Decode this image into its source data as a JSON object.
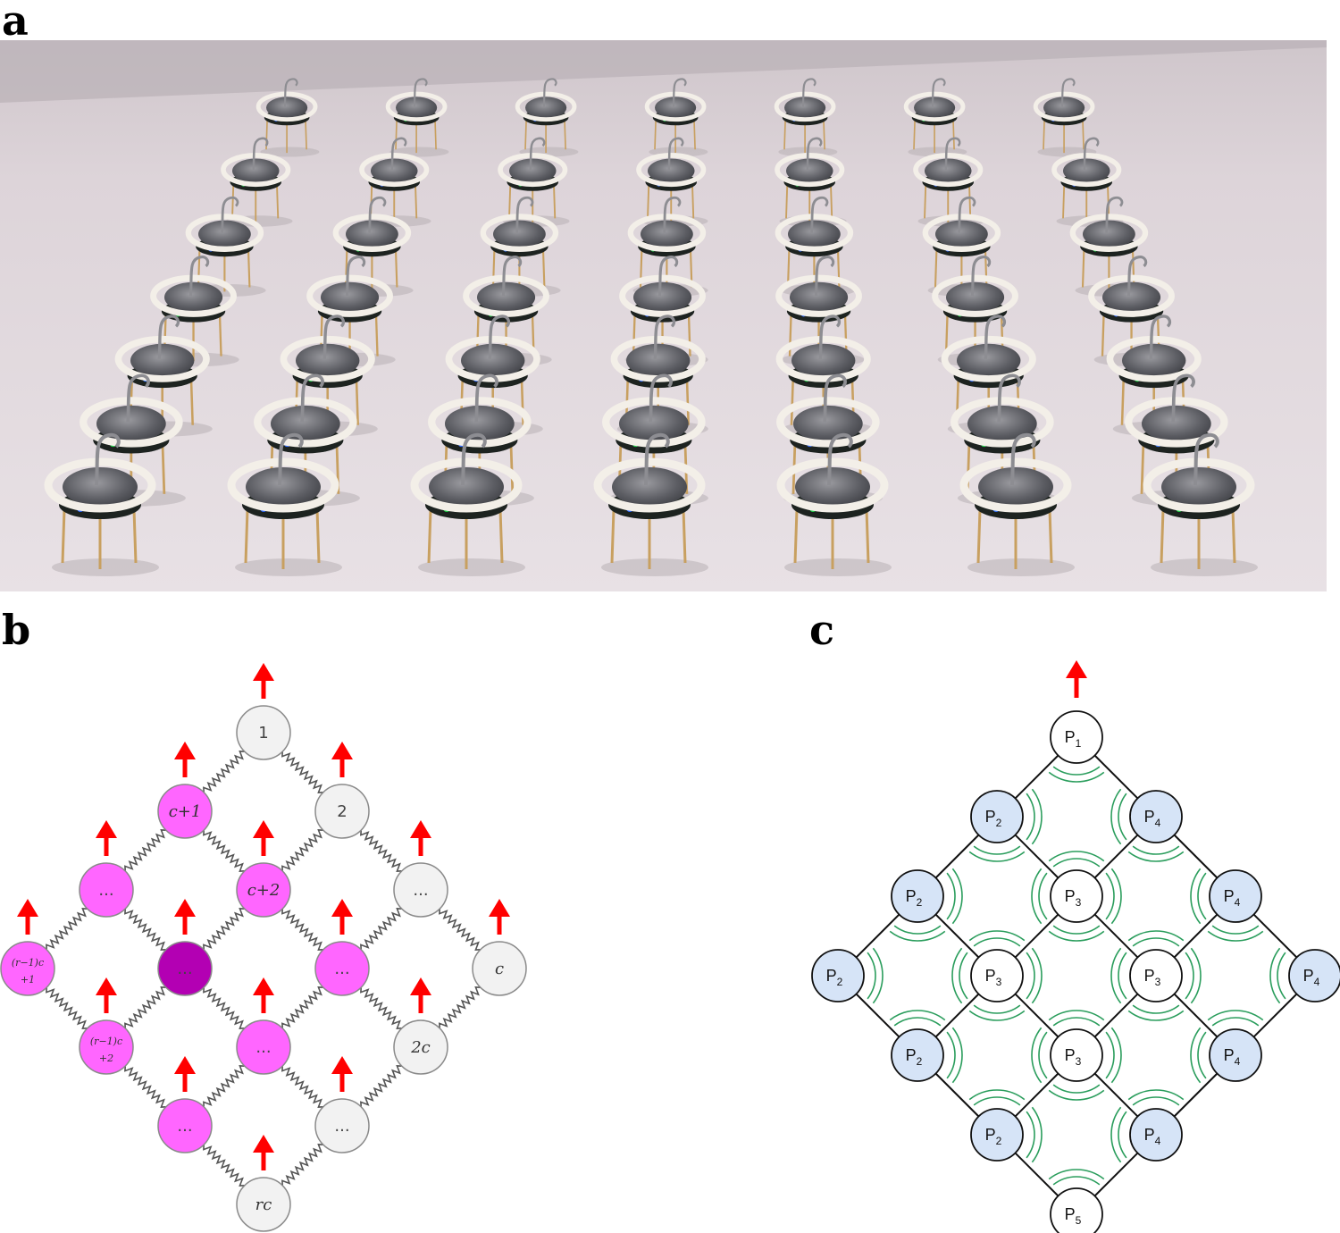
{
  "panels": {
    "a": {
      "label": "a"
    },
    "b": {
      "label": "b"
    },
    "c": {
      "label": "c"
    }
  },
  "colors": {
    "photo_background": "#e3dbe0",
    "node_white": "#f2f2f2",
    "node_magenta": "#ff66ff",
    "node_dark_magenta": "#b300b3",
    "arrow_red": "#ff0000",
    "node_blue": "#d6e4f7",
    "angle_arc_green": "#2a9d5c"
  },
  "diagram_b": {
    "nodes": [
      {
        "label": "1",
        "fill": "white"
      },
      {
        "label": "c+1",
        "fill": "magenta"
      },
      {
        "label": "2",
        "fill": "white"
      },
      {
        "label": "...",
        "fill": "magenta"
      },
      {
        "label": "c+2",
        "fill": "magenta"
      },
      {
        "label": "...",
        "fill": "white"
      },
      {
        "label": "(r−1)c +1",
        "fill": "magenta"
      },
      {
        "label": "...",
        "fill": "dark"
      },
      {
        "label": "...",
        "fill": "magenta"
      },
      {
        "label": "c",
        "fill": "white"
      },
      {
        "label": "(r−1)c +2",
        "fill": "magenta"
      },
      {
        "label": "...",
        "fill": "magenta"
      },
      {
        "label": "2c",
        "fill": "white"
      },
      {
        "label": "...",
        "fill": "magenta"
      },
      {
        "label": "...",
        "fill": "white"
      },
      {
        "label": "rc",
        "fill": "white"
      }
    ]
  },
  "diagram_c": {
    "nodes": [
      {
        "label": "P",
        "sub": "1",
        "fill": "white"
      },
      {
        "label": "P",
        "sub": "2",
        "fill": "blue"
      },
      {
        "label": "P",
        "sub": "4",
        "fill": "blue"
      },
      {
        "label": "P",
        "sub": "2",
        "fill": "blue"
      },
      {
        "label": "P",
        "sub": "3",
        "fill": "white"
      },
      {
        "label": "P",
        "sub": "4",
        "fill": "blue"
      },
      {
        "label": "P",
        "sub": "2",
        "fill": "blue"
      },
      {
        "label": "P",
        "sub": "3",
        "fill": "white"
      },
      {
        "label": "P",
        "sub": "3",
        "fill": "white"
      },
      {
        "label": "P",
        "sub": "4",
        "fill": "blue"
      },
      {
        "label": "P",
        "sub": "2",
        "fill": "blue"
      },
      {
        "label": "P",
        "sub": "3",
        "fill": "white"
      },
      {
        "label": "P",
        "sub": "4",
        "fill": "blue"
      },
      {
        "label": "P",
        "sub": "2",
        "fill": "blue"
      },
      {
        "label": "P",
        "sub": "4",
        "fill": "blue"
      },
      {
        "label": "P",
        "sub": "5",
        "fill": "white"
      }
    ]
  }
}
